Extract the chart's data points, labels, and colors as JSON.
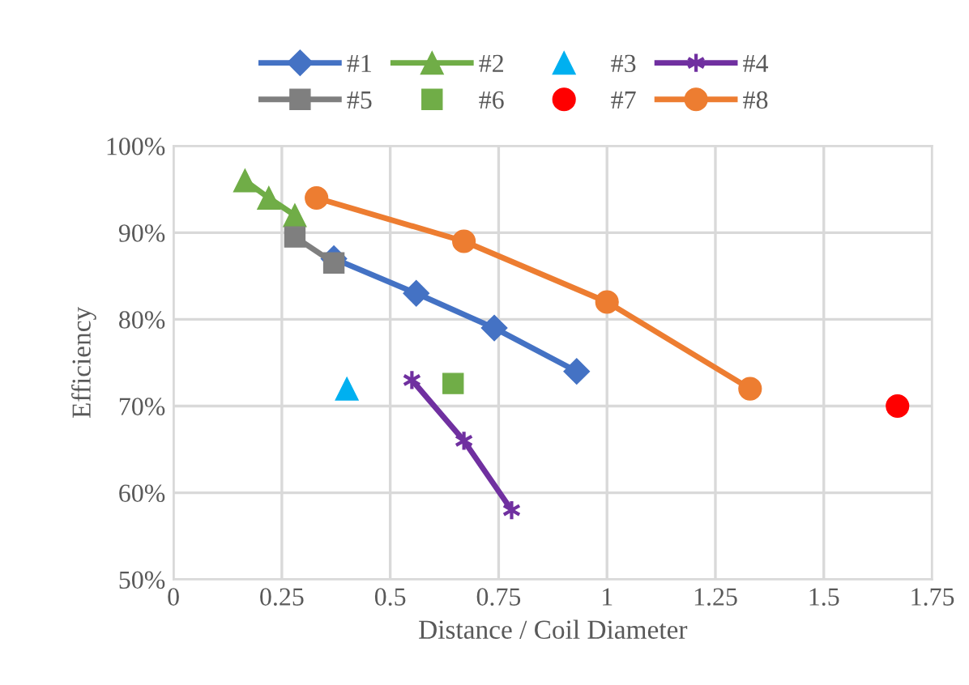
{
  "chart_data": {
    "type": "line",
    "xlabel": "Distance / Coil Diameter",
    "ylabel": "Efficiency",
    "xlim": [
      0,
      1.75
    ],
    "xticks": [
      0,
      0.25,
      0.5,
      0.75,
      1,
      1.25,
      1.5,
      1.75
    ],
    "ylim": [
      50,
      100
    ],
    "yticks": [
      {
        "value": 50,
        "label": "50%"
      },
      {
        "value": 60,
        "label": "60%"
      },
      {
        "value": 70,
        "label": "70%"
      },
      {
        "value": 80,
        "label": "80%"
      },
      {
        "value": 90,
        "label": "90%"
      },
      {
        "value": 100,
        "label": "100%"
      }
    ],
    "grid": true,
    "legend": "top",
    "series": [
      {
        "name": "#1",
        "type": "line",
        "marker": "diamond",
        "color": "#4472c4",
        "x": [
          0.37,
          0.56,
          0.74,
          0.93
        ],
        "values": [
          87,
          83,
          79,
          74
        ]
      },
      {
        "name": "#2",
        "type": "line",
        "marker": "triangle",
        "color": "#70ad47",
        "x": [
          0.165,
          0.22,
          0.28
        ],
        "values": [
          96,
          94,
          92
        ]
      },
      {
        "name": "#3",
        "type": "scatter",
        "marker": "triangle",
        "color": "#00b0f0",
        "x": [
          0.4
        ],
        "values": [
          72
        ]
      },
      {
        "name": "#4",
        "marker": "cross",
        "color": "#7030a0",
        "x": [
          0.55,
          0.67,
          0.78
        ],
        "values": [
          73,
          66,
          58
        ]
      },
      {
        "name": "#5",
        "type": "line",
        "marker": "square",
        "color": "#7f7f7f",
        "x": [
          0.28,
          0.37
        ],
        "values": [
          89.5,
          86.5
        ]
      },
      {
        "name": "#6",
        "type": "scatter",
        "marker": "square",
        "color": "#70ad47",
        "x": [
          0.645
        ],
        "values": [
          72.6
        ]
      },
      {
        "name": "#7",
        "type": "scatter",
        "marker": "circle",
        "color": "#ff0000",
        "x": [
          1.67
        ],
        "values": [
          70
        ]
      },
      {
        "name": "#8",
        "type": "line",
        "marker": "circle",
        "color": "#ed7d31",
        "x": [
          0.33,
          0.67,
          1.0,
          1.33
        ],
        "values": [
          94,
          89,
          82,
          72
        ]
      }
    ]
  }
}
